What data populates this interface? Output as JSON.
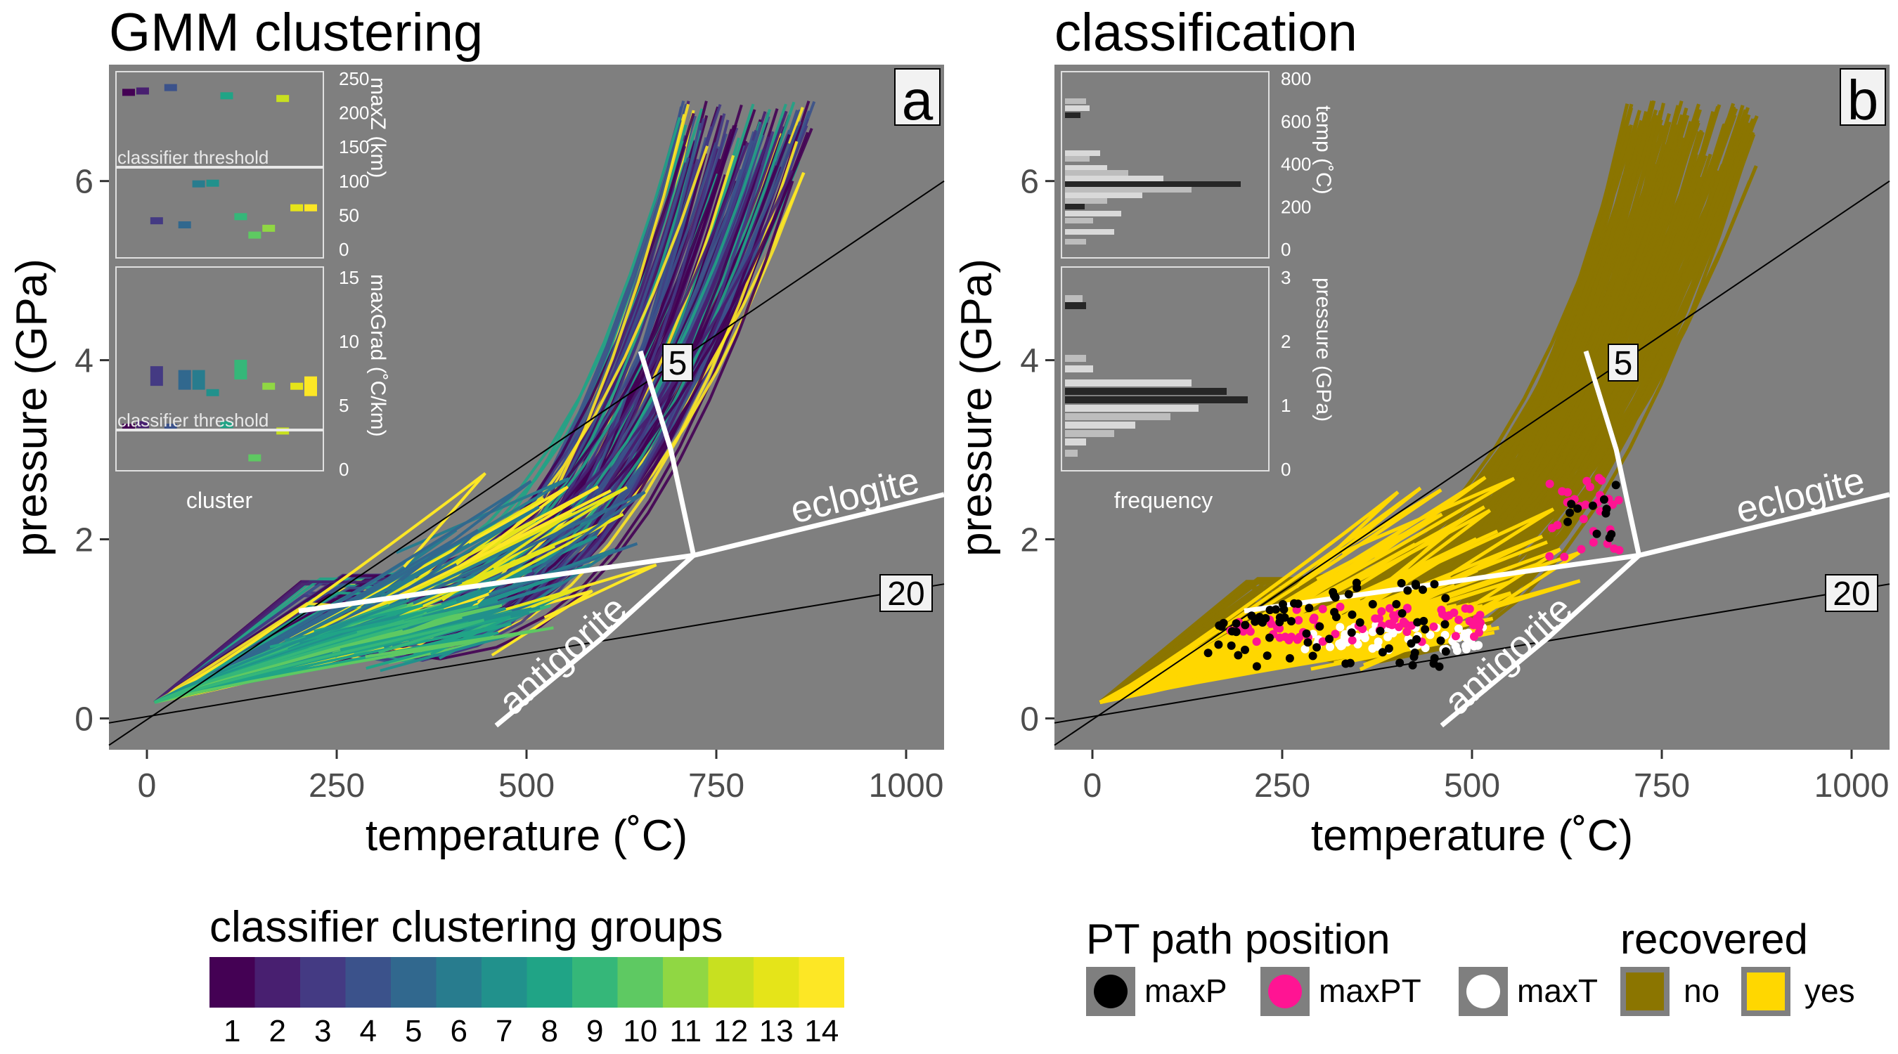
{
  "chart_data": [
    {
      "panel_tag": "a",
      "title": "GMM clustering",
      "type": "line",
      "xlabel": "temperature (˚C)",
      "ylabel": "pressure (GPa)",
      "xlim": [
        -50,
        1050
      ],
      "ylim": [
        -0.35,
        7.3
      ],
      "xticks": [
        "0",
        "250",
        "500",
        "750",
        "1000"
      ],
      "yticks": [
        "0",
        "2",
        "4",
        "6"
      ],
      "grid": false,
      "legend_position": "bottom-left",
      "reference_lines": [
        {
          "label": "5",
          "points": [
            [
              -50,
              -0.3
            ],
            [
              1050,
              6.0
            ]
          ]
        },
        {
          "label": "20",
          "points": [
            [
              -50,
              -0.05
            ],
            [
              1050,
              1.5
            ]
          ]
        }
      ],
      "phase_boundaries": [
        {
          "label": "eclogite",
          "points": [
            [
              200,
              1.2
            ],
            [
              720,
              1.82
            ],
            [
              1050,
              2.5
            ]
          ]
        },
        {
          "label": "antigorite",
          "points": [
            [
              460,
              -0.08
            ],
            [
              600,
              0.9
            ],
            [
              720,
              1.82
            ],
            [
              690,
              3.0
            ],
            [
              650,
              4.1
            ]
          ]
        }
      ],
      "inset": {
        "xlabel": "cluster",
        "top": {
          "ylabel": "maxZ (km)",
          "yticks": [
            "0",
            "50",
            "100",
            "150",
            "200",
            "250"
          ],
          "threshold_label": "classifier threshold",
          "threshold": 117,
          "values": [
            [
              1,
              230
            ],
            [
              2,
              232
            ],
            [
              3,
              42
            ],
            [
              4,
              237
            ],
            [
              5,
              36
            ],
            [
              6,
              96
            ],
            [
              7,
              97
            ],
            [
              8,
              225
            ],
            [
              9,
              48
            ],
            [
              10,
              21
            ],
            [
              11,
              31
            ],
            [
              12,
              221
            ],
            [
              13,
              61
            ],
            [
              14,
              61
            ]
          ]
        },
        "bottom": {
          "ylabel": "maxGrad (˚C/km)",
          "yticks": [
            "0",
            "5",
            "10",
            "15"
          ],
          "threshold_label": "classifier threshold",
          "threshold": 3,
          "values": [
            [
              1,
              3.3
            ],
            [
              2,
              3.5
            ],
            [
              3,
              7.3
            ],
            [
              4,
              3.3
            ],
            [
              5,
              7.0
            ],
            [
              6,
              7.0
            ],
            [
              7,
              6.0
            ],
            [
              8,
              3.5
            ],
            [
              9,
              7.8
            ],
            [
              10,
              0.9
            ],
            [
              11,
              6.5
            ],
            [
              12,
              3.0
            ],
            [
              13,
              6.5
            ],
            [
              14,
              6.5
            ]
          ]
        }
      },
      "legend": {
        "title": "classifier clustering groups",
        "categories": [
          "1",
          "2",
          "3",
          "4",
          "5",
          "6",
          "7",
          "8",
          "9",
          "10",
          "11",
          "12",
          "13",
          "14"
        ],
        "colors": [
          "#440154",
          "#481F70",
          "#443A83",
          "#3B528B",
          "#31688E",
          "#287C8E",
          "#21918C",
          "#20A486",
          "#35B779",
          "#5EC962",
          "#90D743",
          "#C8E020",
          "#E5E419",
          "#FDE725"
        ]
      }
    },
    {
      "panel_tag": "b",
      "title": "classification",
      "type": "line",
      "xlabel": "temperature (˚C)",
      "ylabel": "pressure (GPa)",
      "xlim": [
        -50,
        1050
      ],
      "ylim": [
        -0.35,
        7.3
      ],
      "xticks": [
        "0",
        "250",
        "500",
        "750",
        "1000"
      ],
      "yticks": [
        "0",
        "2",
        "4",
        "6"
      ],
      "grid": false,
      "legend_position": "bottom",
      "reference_lines": [
        {
          "label": "5",
          "points": [
            [
              -50,
              -0.3
            ],
            [
              1050,
              6.0
            ]
          ]
        },
        {
          "label": "20",
          "points": [
            [
              -50,
              -0.05
            ],
            [
              1050,
              1.5
            ]
          ]
        }
      ],
      "phase_boundaries": [
        {
          "label": "eclogite",
          "points": [
            [
              200,
              1.2
            ],
            [
              720,
              1.82
            ],
            [
              1050,
              2.5
            ]
          ]
        },
        {
          "label": "antigorite",
          "points": [
            [
              460,
              -0.08
            ],
            [
              600,
              0.9
            ],
            [
              720,
              1.82
            ],
            [
              690,
              3.0
            ],
            [
              650,
              4.1
            ]
          ]
        }
      ],
      "inset": {
        "xlabel": "frequency",
        "top": {
          "ylabel": "temp (˚C)",
          "yticks": [
            "0",
            "200",
            "400",
            "600",
            "800"
          ]
        },
        "bottom": {
          "ylabel": "pressure (GPa)",
          "yticks": [
            "0",
            "1",
            "2",
            "3"
          ]
        }
      },
      "legend": {
        "groups": [
          {
            "title": "PT path position",
            "items": [
              {
                "label": "maxP",
                "color": "#000000"
              },
              {
                "label": "maxPT",
                "color": "#FF1493"
              },
              {
                "label": "maxT",
                "color": "#FFFFFF"
              }
            ]
          },
          {
            "title": "recovered",
            "items": [
              {
                "label": "no",
                "color": "#8B7500"
              },
              {
                "label": "yes",
                "color": "#FFD700"
              }
            ]
          }
        ]
      }
    }
  ]
}
